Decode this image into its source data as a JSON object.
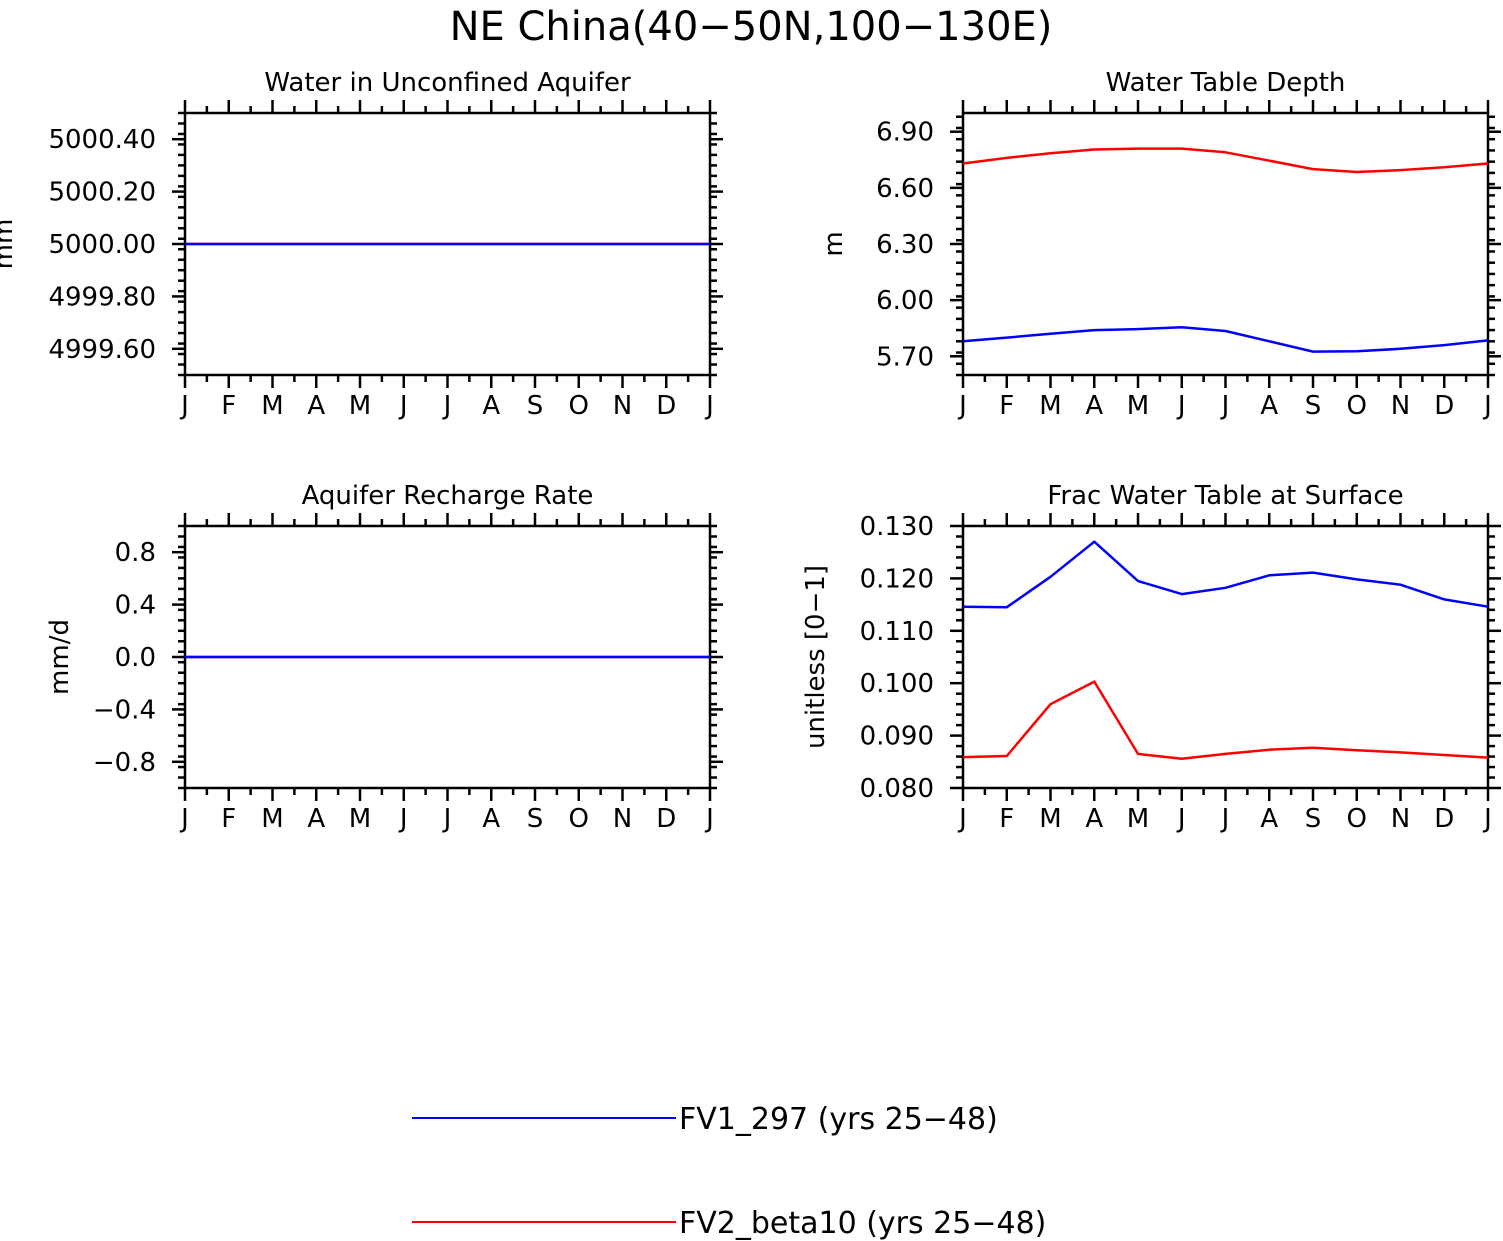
{
  "figure": {
    "title": "NE China(40−50N,100−130E)"
  },
  "colors": {
    "FV1_297": "#0000ff",
    "FV2_beta10": "#ff0000",
    "axis": "#000000"
  },
  "legend": [
    {
      "key": "FV1_297",
      "label": "FV1_297 (yrs 25−48)"
    },
    {
      "key": "FV2_beta10",
      "label": "FV2_beta10 (yrs 25−48)"
    }
  ],
  "chart_data": [
    {
      "id": "aquifer-water",
      "type": "line",
      "title": "Water in Unconfined Aquifer",
      "xlabel": "",
      "ylabel": "mm",
      "x": [
        "J",
        "F",
        "M",
        "A",
        "M",
        "J",
        "J",
        "A",
        "S",
        "O",
        "N",
        "D",
        "J"
      ],
      "ylim": [
        4999.5,
        5000.5
      ],
      "yticks": [
        4999.6,
        4999.8,
        5000.0,
        5000.2,
        5000.4
      ],
      "ytick_labels": [
        "4999.60",
        "4999.80",
        "5000.00",
        "5000.20",
        "5000.40"
      ],
      "series": [
        {
          "name": "FV1_297",
          "values": [
            5000,
            5000,
            5000,
            5000,
            5000,
            5000,
            5000,
            5000,
            5000,
            5000,
            5000,
            5000,
            5000
          ]
        },
        {
          "name": "FV2_beta10",
          "values": [
            5000,
            5000,
            5000,
            5000,
            5000,
            5000,
            5000,
            5000,
            5000,
            5000,
            5000,
            5000,
            5000
          ]
        }
      ]
    },
    {
      "id": "water-table-depth",
      "type": "line",
      "title": "Water Table Depth",
      "xlabel": "",
      "ylabel": "m",
      "x": [
        "J",
        "F",
        "M",
        "A",
        "M",
        "J",
        "J",
        "A",
        "S",
        "O",
        "N",
        "D",
        "J"
      ],
      "ylim": [
        5.6,
        7.0
      ],
      "yticks": [
        5.7,
        6.0,
        6.3,
        6.6,
        6.9
      ],
      "ytick_labels": [
        "5.70",
        "6.00",
        "6.30",
        "6.60",
        "6.90"
      ],
      "series": [
        {
          "name": "FV1_297",
          "values": [
            5.78,
            5.8,
            5.82,
            5.84,
            5.845,
            5.855,
            5.835,
            5.78,
            5.725,
            5.727,
            5.74,
            5.76,
            5.785
          ]
        },
        {
          "name": "FV2_beta10",
          "values": [
            6.73,
            6.76,
            6.785,
            6.805,
            6.81,
            6.81,
            6.79,
            6.745,
            6.7,
            6.685,
            6.695,
            6.71,
            6.73
          ]
        }
      ]
    },
    {
      "id": "recharge-rate",
      "type": "line",
      "title": "Aquifer Recharge Rate",
      "xlabel": "",
      "ylabel": "mm/d",
      "x": [
        "J",
        "F",
        "M",
        "A",
        "M",
        "J",
        "J",
        "A",
        "S",
        "O",
        "N",
        "D",
        "J"
      ],
      "ylim": [
        -1.0,
        1.0
      ],
      "yticks": [
        -0.8,
        -0.4,
        0.0,
        0.4,
        0.8
      ],
      "ytick_labels": [
        "−0.8",
        "−0.4",
        "0.0",
        "0.4",
        "0.8"
      ],
      "series": [
        {
          "name": "FV1_297",
          "values": [
            0,
            0,
            0,
            0,
            0,
            0,
            0,
            0,
            0,
            0,
            0,
            0,
            0
          ]
        },
        {
          "name": "FV2_beta10",
          "values": [
            0,
            0,
            0,
            0,
            0,
            0,
            0,
            0,
            0,
            0,
            0,
            0,
            0
          ]
        }
      ]
    },
    {
      "id": "frac-water-table",
      "type": "line",
      "title": "Frac Water Table at Surface",
      "xlabel": "",
      "ylabel": "unitless [0−1]",
      "x": [
        "J",
        "F",
        "M",
        "A",
        "M",
        "J",
        "J",
        "A",
        "S",
        "O",
        "N",
        "D",
        "J"
      ],
      "ylim": [
        0.08,
        0.13
      ],
      "yticks": [
        0.08,
        0.09,
        0.1,
        0.11,
        0.12,
        0.13
      ],
      "ytick_labels": [
        "0.080",
        "0.090",
        "0.100",
        "0.110",
        "0.120",
        "0.130"
      ],
      "series": [
        {
          "name": "FV1_297",
          "values": [
            0.1146,
            0.1145,
            0.1203,
            0.127,
            0.1195,
            0.117,
            0.1182,
            0.1206,
            0.1211,
            0.1198,
            0.1188,
            0.116,
            0.1146
          ]
        },
        {
          "name": "FV2_beta10",
          "values": [
            0.0859,
            0.0861,
            0.096,
            0.1003,
            0.0865,
            0.0856,
            0.0865,
            0.0873,
            0.0877,
            0.0872,
            0.0868,
            0.0863,
            0.0858
          ]
        }
      ]
    }
  ]
}
